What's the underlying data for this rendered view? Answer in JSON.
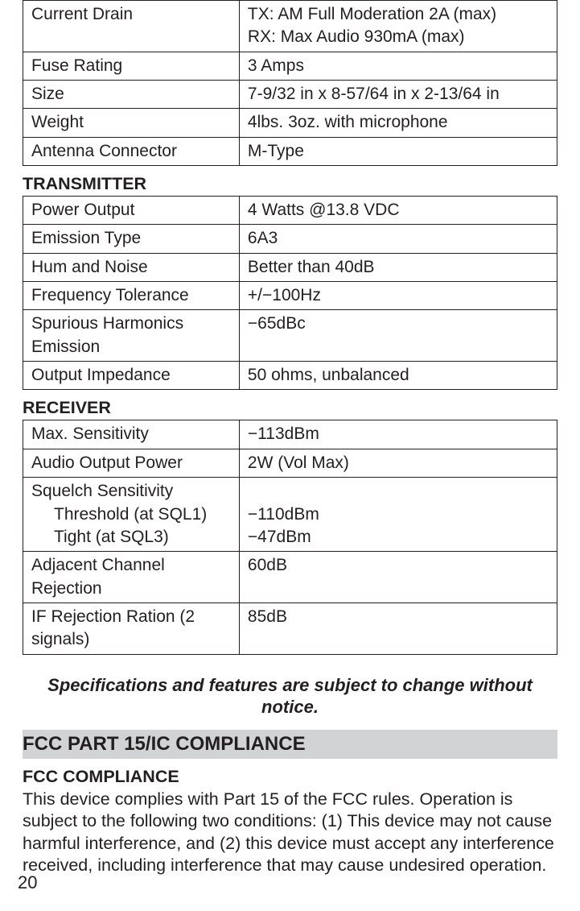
{
  "general": {
    "rows": [
      {
        "label": "Current Drain",
        "value": "TX: AM Full Moderation 2A (max)\nRX: Max Audio 930mA (max)"
      },
      {
        "label": "Fuse Rating",
        "value": "3 Amps"
      },
      {
        "label": "Size",
        "value": "7-9/32 in x 8-57/64 in x 2-13/64 in"
      },
      {
        "label": "Weight",
        "value": "4lbs. 3oz. with microphone"
      },
      {
        "label": "Antenna Connector",
        "value": "M-Type"
      }
    ]
  },
  "transmitter": {
    "heading": "TRANSMITTER",
    "rows": [
      {
        "label": "Power Output",
        "value": "4 Watts @13.8 VDC"
      },
      {
        "label": "Emission Type",
        "value": "6A3"
      },
      {
        "label": "Hum and Noise",
        "value": "Better than 40dB"
      },
      {
        "label": "Frequency Tolerance",
        "value": "+/−100Hz"
      },
      {
        "label": "Spurious Harmonics Emission",
        "value": "−65dBc"
      },
      {
        "label": "Output Impedance",
        "value": "50 ohms, unbalanced"
      }
    ]
  },
  "receiver": {
    "heading": "RECEIVER",
    "rows": [
      {
        "label": "Max. Sensitivity",
        "value": "−113dBm"
      },
      {
        "label": "Audio Output Power",
        "value": "2W (Vol Max)"
      }
    ],
    "squelch": {
      "label": "Squelch Sensitivity",
      "sub1_label": "Threshold (at SQL1)",
      "sub2_label": "Tight (at SQL3)",
      "sub1_value": "−110dBm",
      "sub2_value": "−47dBm"
    },
    "rows2": [
      {
        "label": "Adjacent Channel Rejection",
        "value": "60dB"
      },
      {
        "label": "IF Rejection Ration (2 signals)",
        "value": "85dB"
      }
    ]
  },
  "disclaimer": "Specifications and features are subject to change without notice.",
  "fcc": {
    "gray_heading": "FCC PART 15/IC COMPLIANCE",
    "sub_heading": "FCC COMPLIANCE",
    "body": "This device complies with Part 15 of the FCC rules. Operation is subject to the following two conditions: (1) This device may not cause harmful interference, and (2) this device must accept any interference received, including interference that may cause undesired operation."
  },
  "page_number": "20"
}
